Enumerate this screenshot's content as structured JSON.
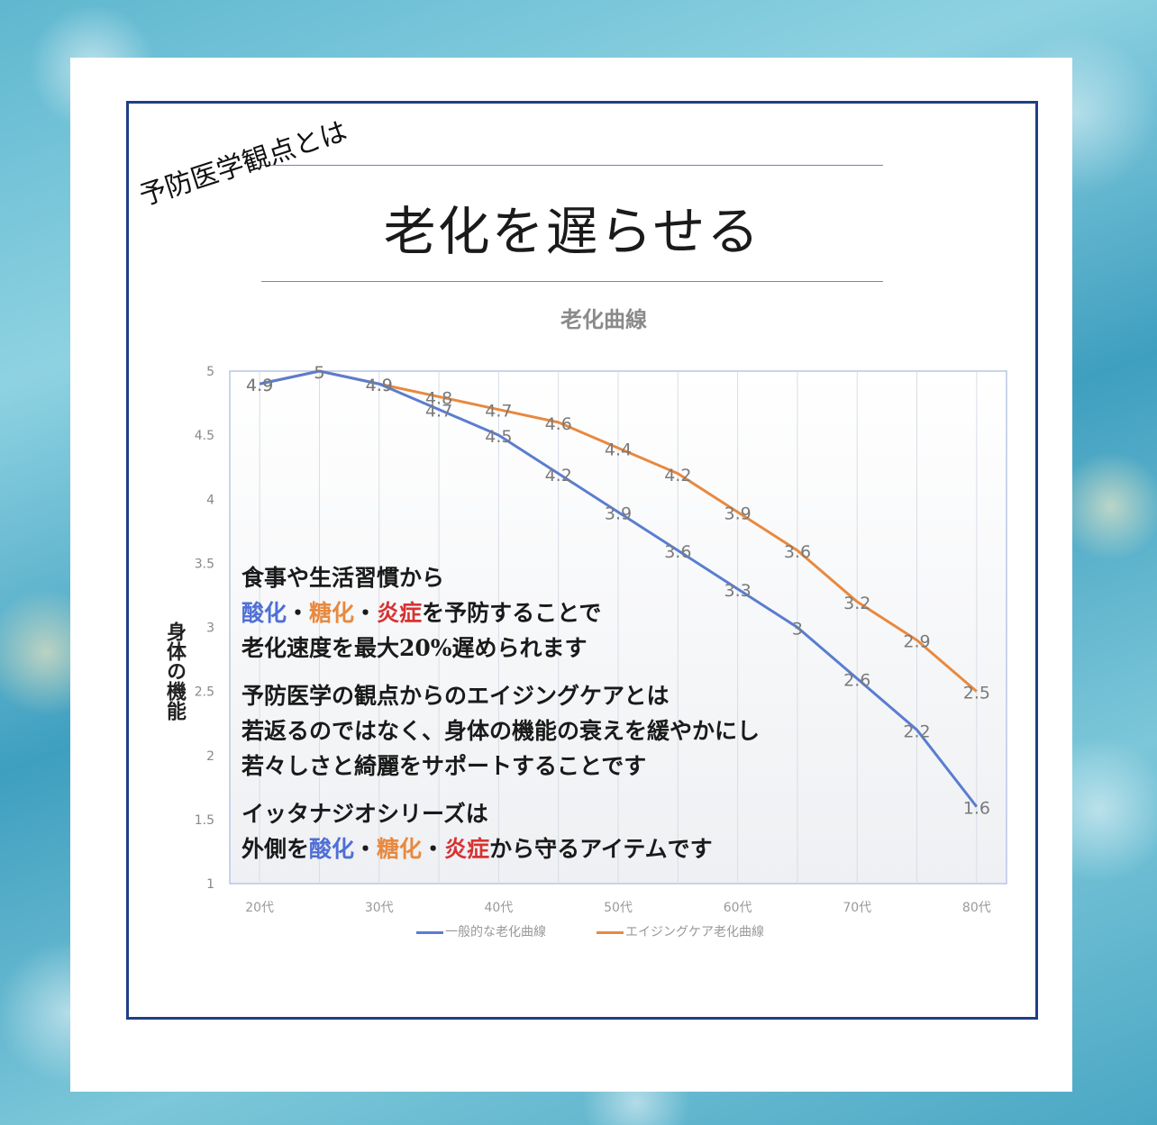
{
  "header": {
    "tagline": "予防医学観点とは",
    "title": "老化を遅らせる"
  },
  "colors": {
    "frame": "#1f3f86",
    "series_general": "#5a7dd0",
    "series_aging_care": "#e8893f",
    "keyword_blue": "#4f6fd6",
    "keyword_orange": "#e8893f",
    "keyword_red": "#d83232"
  },
  "chart_data": {
    "type": "line",
    "title": "老化曲線",
    "ylabel": "身体の機能",
    "xlabel": "",
    "ylim": [
      1,
      5
    ],
    "yticks": [
      "1",
      "1.5",
      "2",
      "2.5",
      "3",
      "3.5",
      "4",
      "4.5",
      "5"
    ],
    "x": [
      20,
      25,
      30,
      35,
      40,
      45,
      50,
      55,
      60,
      65,
      70,
      75,
      80
    ],
    "xtick_labels": [
      {
        "x": 20,
        "label": "20代"
      },
      {
        "x": 30,
        "label": "30代"
      },
      {
        "x": 40,
        "label": "40代"
      },
      {
        "x": 50,
        "label": "50代"
      },
      {
        "x": 60,
        "label": "60代"
      },
      {
        "x": 70,
        "label": "70代"
      },
      {
        "x": 80,
        "label": "80代"
      }
    ],
    "series": [
      {
        "name": "一般的な老化曲線",
        "color": "#5a7dd0",
        "values": [
          4.9,
          5,
          4.9,
          4.7,
          4.5,
          4.2,
          3.9,
          3.6,
          3.3,
          3,
          2.6,
          2.2,
          1.6
        ],
        "labels": [
          "4.9",
          "5",
          "4.9",
          "4.7",
          "4.5",
          "4.2",
          "3.9",
          "3.6",
          "3.3",
          "3",
          "2.6",
          "2.2",
          "1.6"
        ]
      },
      {
        "name": "エイジングケア老化曲線",
        "color": "#e8893f",
        "values": [
          4.9,
          5,
          4.9,
          4.8,
          4.7,
          4.6,
          4.4,
          4.2,
          3.9,
          3.6,
          3.2,
          2.9,
          2.5
        ],
        "labels": [
          "4.9",
          "5",
          "4.9",
          "4.8",
          "4.7",
          "4.6",
          "4.4",
          "4.2",
          "3.9",
          "3.6",
          "3.2",
          "2.9",
          "2.5"
        ]
      }
    ],
    "legend": "bottom"
  },
  "overlay_text": {
    "p1_l1": "食事や生活習慣から",
    "p1_l2_kw1": "酸化",
    "p1_l2_sep1": "・",
    "p1_l2_kw2": "糖化",
    "p1_l2_sep2": "・",
    "p1_l2_kw3": "炎症",
    "p1_l2_rest": "を予防することで",
    "p1_l3": "老化速度を最大20%遅められます",
    "p2_l1": "予防医学の観点からのエイジングケアとは",
    "p2_l2": "若返るのではなく、身体の機能の衰えを緩やかにし",
    "p2_l3": "若々しさと綺麗をサポートすることです",
    "p3_l1": "イッタナジオシリーズは",
    "p3_l2_pre": "外側を",
    "p3_l2_kw1": "酸化",
    "p3_l2_sep1": "・",
    "p3_l2_kw2": "糖化",
    "p3_l2_sep2": "・",
    "p3_l2_kw3": "炎症",
    "p3_l2_rest": "から守るアイテムです"
  }
}
